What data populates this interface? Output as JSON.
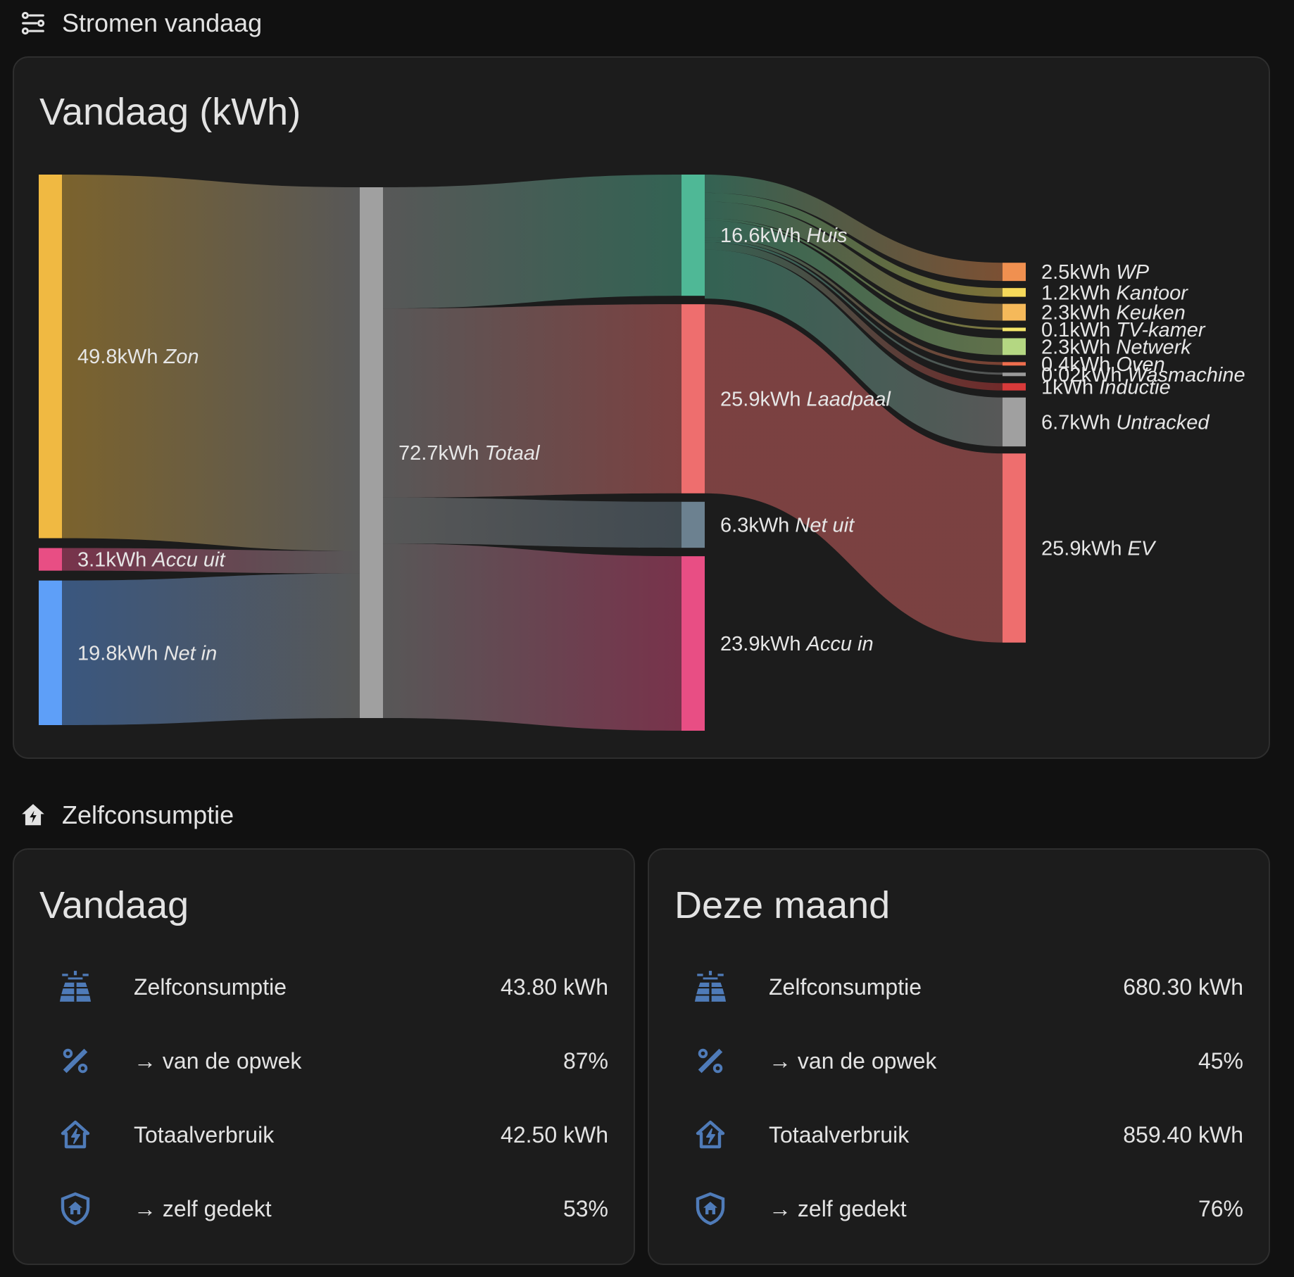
{
  "sections": {
    "flows": {
      "title": "Stromen vandaag",
      "icon": "flow-icon"
    },
    "self": {
      "title": "Zelfconsumptie",
      "icon": "home-lightning-icon"
    }
  },
  "sankey_card": {
    "title": "Vandaag (kWh)"
  },
  "chart_data": {
    "type": "sankey",
    "unit": "kWh",
    "nodes": [
      {
        "id": "zon",
        "label": "Zon",
        "value": 49.8,
        "value_text": "49.8kWh",
        "color": "#f0b942",
        "column": 0
      },
      {
        "id": "accu_uit",
        "label": "Accu uit",
        "value": 3.1,
        "value_text": "3.1kWh",
        "color": "#e84e84",
        "column": 0
      },
      {
        "id": "net_in",
        "label": "Net in",
        "value": 19.8,
        "value_text": "19.8kWh",
        "color": "#5e9ff8",
        "column": 0
      },
      {
        "id": "totaal",
        "label": "Totaal",
        "value": 72.7,
        "value_text": "72.7kWh",
        "color": "#a0a0a0",
        "column": 1
      },
      {
        "id": "huis",
        "label": "Huis",
        "value": 16.6,
        "value_text": "16.6kWh",
        "color": "#4fb896",
        "column": 2
      },
      {
        "id": "laadpaal",
        "label": "Laadpaal",
        "value": 25.9,
        "value_text": "25.9kWh",
        "color": "#ee6e6e",
        "column": 2
      },
      {
        "id": "net_uit",
        "label": "Net uit",
        "value": 6.3,
        "value_text": "6.3kWh",
        "color": "#6c8190",
        "column": 2
      },
      {
        "id": "accu_in",
        "label": "Accu in",
        "value": 23.9,
        "value_text": "23.9kWh",
        "color": "#e84e84",
        "column": 2
      },
      {
        "id": "wp",
        "label": "WP",
        "value": 2.5,
        "value_text": "2.5kWh",
        "color": "#f09050",
        "column": 3
      },
      {
        "id": "kantoor",
        "label": "Kantoor",
        "value": 1.2,
        "value_text": "1.2kWh",
        "color": "#f5d95a",
        "column": 3
      },
      {
        "id": "keuken",
        "label": "Keuken",
        "value": 2.3,
        "value_text": "2.3kWh",
        "color": "#f5b95a",
        "column": 3
      },
      {
        "id": "tvkamer",
        "label": "TV-kamer",
        "value": 0.1,
        "value_text": "0.1kWh",
        "color": "#f5e66a",
        "column": 3
      },
      {
        "id": "netwerk",
        "label": "Netwerk",
        "value": 2.3,
        "value_text": "2.3kWh",
        "color": "#b4d782",
        "column": 3
      },
      {
        "id": "oven",
        "label": "Oven",
        "value": 0.4,
        "value_text": "0.4kWh",
        "color": "#ee6e4e",
        "column": 3
      },
      {
        "id": "wasmachine",
        "label": "Wasmachine",
        "value": 0.02,
        "value_text": "0.02kWh",
        "color": "#9a9a9a",
        "column": 3
      },
      {
        "id": "inductie",
        "label": "Inductie",
        "value": 1,
        "value_text": "1kWh",
        "color": "#d83a3a",
        "column": 3
      },
      {
        "id": "untracked",
        "label": "Untracked",
        "value": 6.7,
        "value_text": "6.7kWh",
        "color": "#a0a0a0",
        "column": 3
      },
      {
        "id": "ev",
        "label": "EV",
        "value": 25.9,
        "value_text": "25.9kWh",
        "color": "#ee6e6e",
        "column": 3
      }
    ],
    "links": [
      {
        "source": "zon",
        "target": "totaal",
        "value": 49.8
      },
      {
        "source": "accu_uit",
        "target": "totaal",
        "value": 3.1
      },
      {
        "source": "net_in",
        "target": "totaal",
        "value": 19.8
      },
      {
        "source": "totaal",
        "target": "huis",
        "value": 16.6
      },
      {
        "source": "totaal",
        "target": "laadpaal",
        "value": 25.9
      },
      {
        "source": "totaal",
        "target": "net_uit",
        "value": 6.3
      },
      {
        "source": "totaal",
        "target": "accu_in",
        "value": 23.9
      },
      {
        "source": "huis",
        "target": "wp",
        "value": 2.5
      },
      {
        "source": "huis",
        "target": "kantoor",
        "value": 1.2
      },
      {
        "source": "huis",
        "target": "keuken",
        "value": 2.3
      },
      {
        "source": "huis",
        "target": "tvkamer",
        "value": 0.1
      },
      {
        "source": "huis",
        "target": "netwerk",
        "value": 2.3
      },
      {
        "source": "huis",
        "target": "oven",
        "value": 0.4
      },
      {
        "source": "huis",
        "target": "wasmachine",
        "value": 0.02
      },
      {
        "source": "huis",
        "target": "inductie",
        "value": 1
      },
      {
        "source": "huis",
        "target": "untracked",
        "value": 6.7
      },
      {
        "source": "laadpaal",
        "target": "ev",
        "value": 25.9
      }
    ]
  },
  "cards": [
    {
      "title": "Vandaag",
      "rows": [
        {
          "icon": "solar-panel-icon",
          "label": "Zelfconsumptie",
          "value": "43.80 kWh"
        },
        {
          "icon": "percent-icon",
          "label": "→ van de opwek",
          "value": "87%"
        },
        {
          "icon": "home-lightning-icon",
          "label": "Totaalverbruik",
          "value": "42.50 kWh"
        },
        {
          "icon": "shield-home-icon",
          "label": "→ zelf gedekt",
          "value": "53%"
        }
      ]
    },
    {
      "title": "Deze maand",
      "rows": [
        {
          "icon": "solar-panel-icon",
          "label": "Zelfconsumptie",
          "value": "680.30 kWh"
        },
        {
          "icon": "percent-icon",
          "label": "→ van de opwek",
          "value": "45%"
        },
        {
          "icon": "home-lightning-icon",
          "label": "Totaalverbruik",
          "value": "859.40 kWh"
        },
        {
          "icon": "shield-home-icon",
          "label": "→ zelf gedekt",
          "value": "76%"
        }
      ]
    }
  ],
  "colors": {
    "icon": "#4f7bb8",
    "card_bg": "#1c1c1c",
    "page_bg": "#111111"
  }
}
